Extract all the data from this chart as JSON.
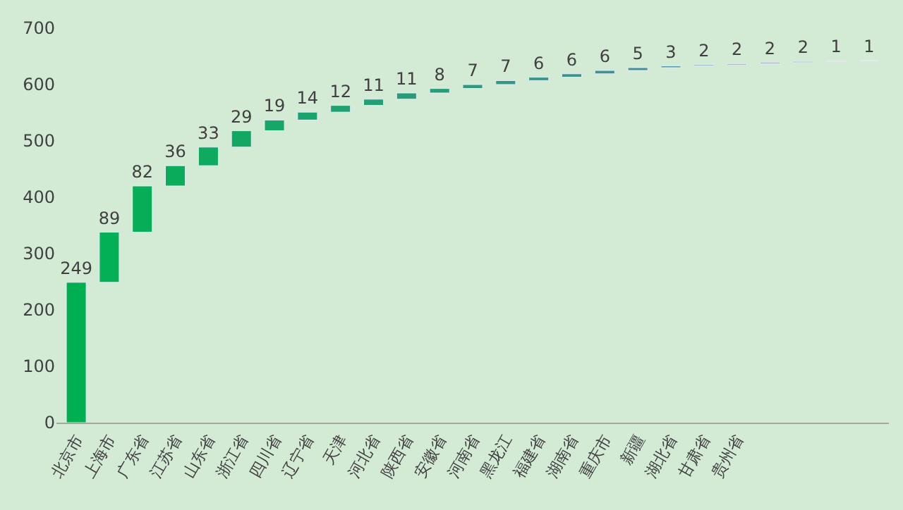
{
  "chart_data": {
    "type": "bar",
    "categories": [
      "北京市",
      "上海市",
      "广东省",
      "江苏省",
      "山东省",
      "浙江省",
      "四川省",
      "辽宁省",
      "天津",
      "河北省",
      "陕西省",
      "安徽省",
      "河南省",
      "黑龙江",
      "福建省",
      "湖南省",
      "重庆市",
      "新疆",
      "湖北省",
      "甘肃省",
      "贵州省",
      null,
      null,
      null,
      null
    ],
    "values": [
      249,
      89,
      82,
      36,
      33,
      29,
      19,
      14,
      12,
      11,
      11,
      8,
      7,
      7,
      6,
      6,
      6,
      5,
      3,
      2,
      2,
      2,
      2,
      1,
      1
    ],
    "base": [
      0,
      249,
      338,
      420,
      456,
      489,
      518,
      537,
      551,
      563,
      574,
      585,
      593,
      600,
      607,
      613,
      619,
      625,
      630,
      633,
      635,
      637,
      639,
      641,
      642
    ],
    "colors": [
      "#00b050",
      "#03b055",
      "#06ae58",
      "#0aac5c",
      "#0eaa60",
      "#12a864",
      "#16a667",
      "#1aa46b",
      "#1ea26f",
      "#22a073",
      "#269e77",
      "#2a9c7b",
      "#2e9a7f",
      "#329883",
      "#369687",
      "#3a948b",
      "#3e928f",
      "#429093",
      "#4a90a8",
      "#5290b0",
      "#5a90b8",
      "#6a98be",
      "#7aa0c4",
      "#8aa8c8",
      "#9ab0cc"
    ],
    "ylim": [
      0,
      700
    ],
    "yticks": [
      0,
      100,
      200,
      300,
      400,
      500,
      600,
      700
    ],
    "grid": false,
    "data_labels": true
  }
}
